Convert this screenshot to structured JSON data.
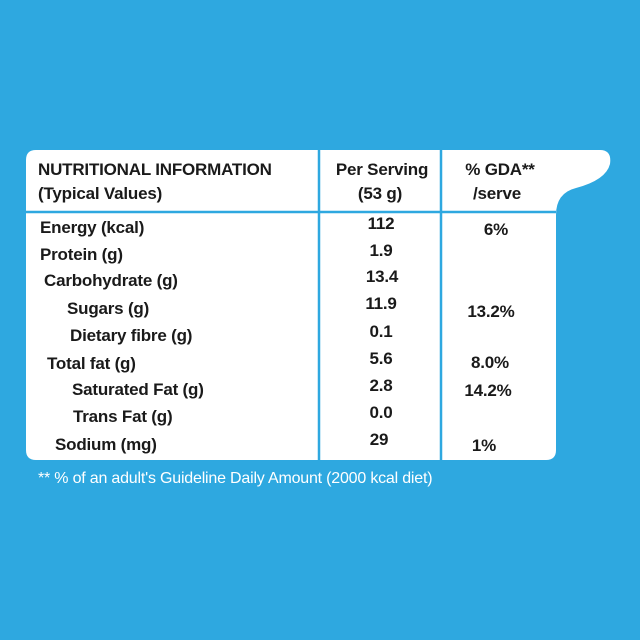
{
  "header": {
    "title": "NUTRITIONAL INFORMATION",
    "subtitle": "(Typical Values)",
    "per_serving_line1": "Per Serving",
    "per_serving_line2": "(53 g)",
    "gda_line1": "% GDA**",
    "gda_line2": "/serve"
  },
  "rows": [
    {
      "label": "Energy (kcal)",
      "value": "112",
      "gda": "6%"
    },
    {
      "label": "Protein (g)",
      "value": "1.9",
      "gda": ""
    },
    {
      "label": "Carbohydrate (g)",
      "value": "13.4",
      "gda": ""
    },
    {
      "label": "Sugars (g)",
      "value": "11.9",
      "gda": "13.2%"
    },
    {
      "label": "Dietary fibre (g)",
      "value": "0.1",
      "gda": ""
    },
    {
      "label": "Total fat (g)",
      "value": "5.6",
      "gda": "8.0%"
    },
    {
      "label": "Saturated Fat (g)",
      "value": "2.8",
      "gda": "14.2%"
    },
    {
      "label": "Trans Fat (g)",
      "value": "0.0",
      "gda": ""
    },
    {
      "label": "Sodium (mg)",
      "value": "29",
      "gda": "1%"
    }
  ],
  "footnote": "** % of an adult's Guideline Daily Amount (2000 kcal diet)",
  "colors": {
    "background": "#2ea8e0",
    "panel": "#ffffff",
    "lines": "#2ea8e0",
    "text": "#1a1a1a"
  }
}
